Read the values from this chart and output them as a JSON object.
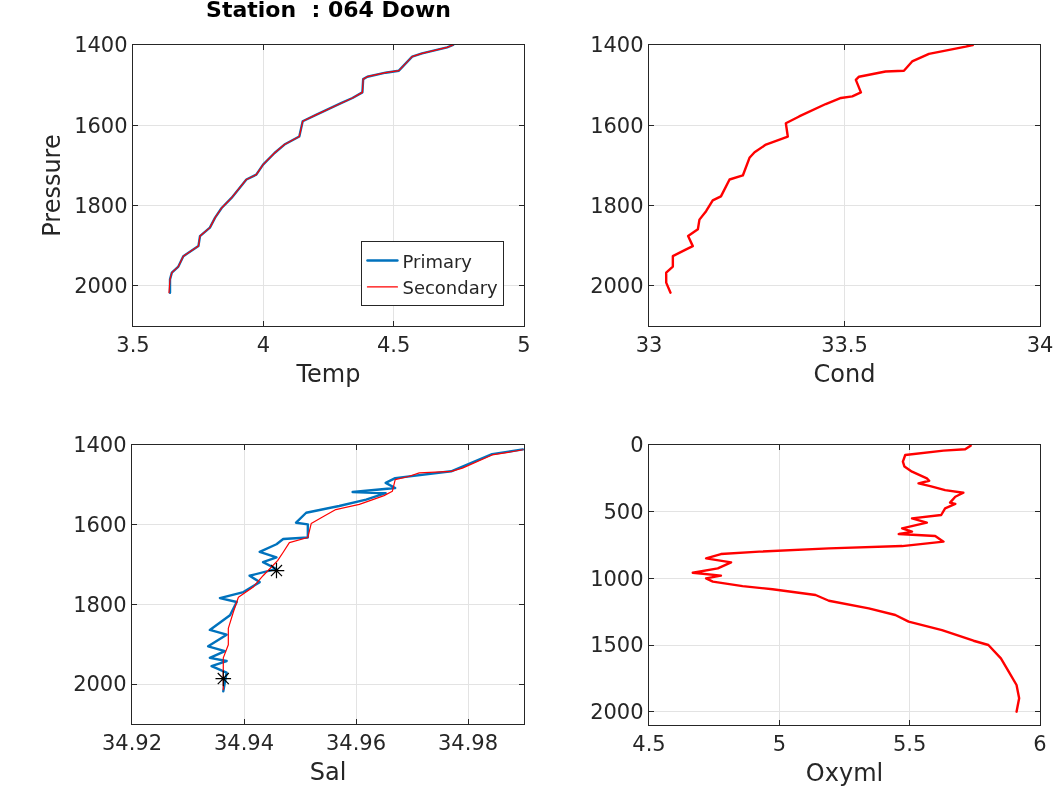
{
  "chart_data": [
    {
      "type": "line",
      "title": "Station  : 064 Down",
      "xlabel": "Temp",
      "ylabel": "Pressure",
      "xlim": [
        3.5,
        5
      ],
      "xticks": [
        3.5,
        4,
        4.5,
        5
      ],
      "ylim": [
        2100,
        1400
      ],
      "yticks": [
        1400,
        1600,
        1800,
        2000
      ],
      "grid": true,
      "legend": "bottom right",
      "line_style": "solid",
      "series": [
        {
          "name": "Primary",
          "color": "#0072bd",
          "x": [
            4.728,
            4.705,
            4.609,
            4.571,
            4.52,
            4.469,
            4.399,
            4.383,
            4.38,
            4.342,
            4.298,
            4.202,
            4.151,
            4.138,
            4.081,
            4.043,
            3.999,
            3.973,
            3.935,
            3.878,
            3.84,
            3.815,
            3.795,
            3.757,
            3.751,
            3.693,
            3.674,
            3.649,
            3.642,
            3.642
          ],
          "values": [
            1400,
            1406,
            1421,
            1429,
            1464,
            1469,
            1479,
            1485,
            1518,
            1532,
            1545,
            1574,
            1590,
            1628,
            1648,
            1669,
            1698,
            1723,
            1735,
            1781,
            1806,
            1830,
            1855,
            1876,
            1901,
            1926,
            1952,
            1967,
            1984,
            2017
          ]
        },
        {
          "name": "Secondary",
          "color": "#ff0000",
          "x": [
            4.728,
            4.705,
            4.609,
            4.571,
            4.52,
            4.469,
            4.399,
            4.383,
            4.38,
            4.342,
            4.298,
            4.202,
            4.151,
            4.138,
            4.081,
            4.043,
            3.999,
            3.973,
            3.935,
            3.878,
            3.84,
            3.815,
            3.795,
            3.757,
            3.751,
            3.693,
            3.674,
            3.649,
            3.642,
            3.638
          ],
          "values": [
            1400,
            1406,
            1421,
            1429,
            1464,
            1469,
            1479,
            1485,
            1518,
            1532,
            1545,
            1574,
            1590,
            1628,
            1648,
            1669,
            1698,
            1723,
            1735,
            1781,
            1806,
            1830,
            1855,
            1876,
            1901,
            1926,
            1952,
            1967,
            1984,
            2017
          ]
        }
      ]
    },
    {
      "type": "line",
      "xlabel": "Cond",
      "xlim": [
        33,
        34
      ],
      "xticks": [
        33,
        33.5,
        34
      ],
      "ylim": [
        2100,
        1400
      ],
      "yticks": [
        1400,
        1600,
        1800,
        2000
      ],
      "grid": true,
      "line_style": "solid",
      "series": [
        {
          "color": "#ff0000",
          "x": [
            33.828,
            33.81,
            33.716,
            33.673,
            33.652,
            33.605,
            33.537,
            33.529,
            33.542,
            33.52,
            33.491,
            33.452,
            33.384,
            33.35,
            33.355,
            33.299,
            33.27,
            33.257,
            33.24,
            33.206,
            33.184,
            33.163,
            33.146,
            33.129,
            33.125,
            33.1,
            33.112,
            33.095,
            33.061,
            33.061,
            33.044,
            33.044,
            33.055
          ],
          "values": [
            1400,
            1404,
            1422,
            1441,
            1464,
            1466,
            1479,
            1487,
            1518,
            1528,
            1532,
            1547,
            1578,
            1595,
            1628,
            1648,
            1667,
            1681,
            1725,
            1735,
            1777,
            1787,
            1814,
            1835,
            1859,
            1876,
            1901,
            1909,
            1926,
            1952,
            1967,
            1992,
            2017
          ]
        }
      ]
    },
    {
      "type": "line",
      "xlabel": "Sal",
      "xlim": [
        34.92,
        34.99
      ],
      "xticks": [
        34.92,
        34.94,
        34.96,
        34.98
      ],
      "ylim": [
        2100,
        1400
      ],
      "yticks": [
        1400,
        1600,
        1800,
        2000
      ],
      "grid": true,
      "line_style": "solid",
      "series": [
        {
          "color": "#0072bd",
          "x": [
            34.9898,
            34.9843,
            34.977,
            34.967,
            34.9653,
            34.967,
            34.9594,
            34.9653,
            34.9618,
            34.957,
            34.9535,
            34.9511,
            34.9493,
            34.9514,
            34.9514,
            34.947,
            34.9458,
            34.9428,
            34.9458,
            34.9434,
            34.9458,
            34.941,
            34.9428,
            34.9399,
            34.9357,
            34.9387,
            34.9375,
            34.9339,
            34.9369,
            34.9336,
            34.9366,
            34.9339,
            34.9369,
            34.9342,
            34.9369,
            34.9363
          ],
          "values": [
            1411,
            1423,
            1466,
            1483,
            1495,
            1508,
            1518,
            1521,
            1537,
            1553,
            1563,
            1570,
            1595,
            1599,
            1632,
            1636,
            1649,
            1668,
            1682,
            1694,
            1711,
            1728,
            1744,
            1769,
            1784,
            1794,
            1827,
            1864,
            1876,
            1905,
            1917,
            1934,
            1942,
            1955,
            1971,
            2018
          ]
        },
        {
          "color": "#ff0000",
          "x": [
            34.9898,
            34.9878,
            34.9843,
            34.979,
            34.977,
            34.9713,
            34.9694,
            34.967,
            34.9665,
            34.965,
            34.963,
            34.9606,
            34.9564,
            34.9541,
            34.952,
            34.9514,
            34.9481,
            34.947,
            34.946,
            34.9434,
            34.9416,
            34.939,
            34.9381,
            34.9372,
            34.9372,
            34.9363,
            34.9363,
            34.9363
          ],
          "values": [
            1412,
            1417,
            1425,
            1458,
            1466,
            1470,
            1479,
            1487,
            1516,
            1527,
            1537,
            1549,
            1562,
            1580,
            1597,
            1632,
            1645,
            1669,
            1690,
            1728,
            1757,
            1782,
            1819,
            1860,
            1901,
            1934,
            1992,
            2014
          ]
        },
        {
          "type": "scatter",
          "marker": "cross",
          "color": "#000000",
          "x": [
            34.9458,
            34.9363
          ],
          "values": [
            1715,
            1986
          ]
        }
      ]
    },
    {
      "type": "line",
      "xlabel": "Oxyml",
      "xlim": [
        4.5,
        6
      ],
      "xticks": [
        4.5,
        5,
        5.5,
        6
      ],
      "ylim": [
        2100,
        0
      ],
      "yticks": [
        0,
        500,
        1000,
        1500,
        2000
      ],
      "grid": true,
      "line_style": "solid",
      "series": [
        {
          "color": "#ff0000",
          "x": [
            5.734,
            5.713,
            5.63,
            5.483,
            5.474,
            5.48,
            5.509,
            5.566,
            5.575,
            5.534,
            5.579,
            5.636,
            5.706,
            5.675,
            5.655,
            5.675,
            5.636,
            5.621,
            5.509,
            5.566,
            5.471,
            5.509,
            5.458,
            5.598,
            5.63,
            5.471,
            5.19,
            4.923,
            4.776,
            4.719,
            4.815,
            4.764,
            4.668,
            4.776,
            4.719,
            4.745,
            4.859,
            4.974,
            5.139,
            5.19,
            5.343,
            5.445,
            5.496,
            5.624,
            5.745,
            5.802,
            5.85,
            5.88,
            5.91,
            5.92,
            5.91
          ],
          "values": [
            5,
            32,
            42,
            75,
            125,
            162,
            200,
            250,
            268,
            288,
            308,
            338,
            358,
            388,
            432,
            442,
            475,
            525,
            550,
            582,
            625,
            650,
            668,
            682,
            725,
            758,
            775,
            800,
            818,
            850,
            880,
            925,
            958,
            980,
            1000,
            1025,
            1058,
            1082,
            1125,
            1168,
            1225,
            1275,
            1325,
            1388,
            1468,
            1500,
            1600,
            1700,
            1800,
            1900,
            2000
          ]
        }
      ]
    }
  ]
}
